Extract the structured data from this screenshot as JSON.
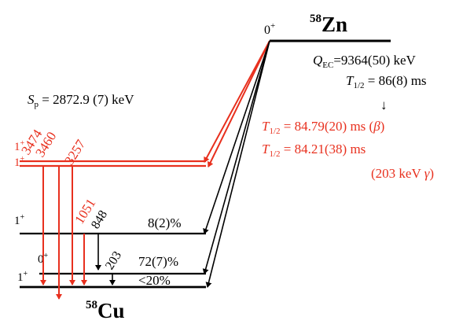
{
  "parent": {
    "nucleus_mass": "58",
    "nucleus_symbol": "Zn",
    "ground_spin": "0",
    "ground_parity": "+",
    "q_ec_label": "Q",
    "q_ec_sub": "EC",
    "q_ec_value": "=9364(50) keV",
    "half_life_label": "T",
    "half_life_sub": "1/2",
    "half_life_value": " = 86(8) ms",
    "arrow": "↓"
  },
  "new_results": {
    "beta_label": "T",
    "beta_sub": "1/2",
    "beta_value": " = 84.79(20) ms (",
    "beta_symbol": "β",
    "beta_close": ")",
    "gamma_label": "T",
    "gamma_sub": "1/2",
    "gamma_value": " = 84.21(38) ms",
    "gamma_note_open": "(203 keV ",
    "gamma_symbol": "γ",
    "gamma_note_close": ")"
  },
  "separation_energy": {
    "label": "S",
    "sub": "p",
    "value": " = 2872.9 (7) keV"
  },
  "daughter": {
    "nucleus_mass": "58",
    "nucleus_symbol": "Cu"
  },
  "levels": {
    "high_spin_upper": "1",
    "high_spin_lower": "1",
    "high_parity": "+",
    "mid_spin": "1",
    "mid_parity": "+",
    "low_spin": "0",
    "low_parity": "+",
    "ground_spin": "1",
    "ground_parity": "+"
  },
  "gammas": {
    "g3474": "3474",
    "g3460": "3460",
    "g3257": "3257",
    "g1051": "1051",
    "g848": "848",
    "g203": "203"
  },
  "branchings": {
    "mid": "8(2)%",
    "low": "72(7)%",
    "ground": "<20%"
  },
  "colors": {
    "highlight": "#e8301e",
    "ink": "#000000"
  }
}
